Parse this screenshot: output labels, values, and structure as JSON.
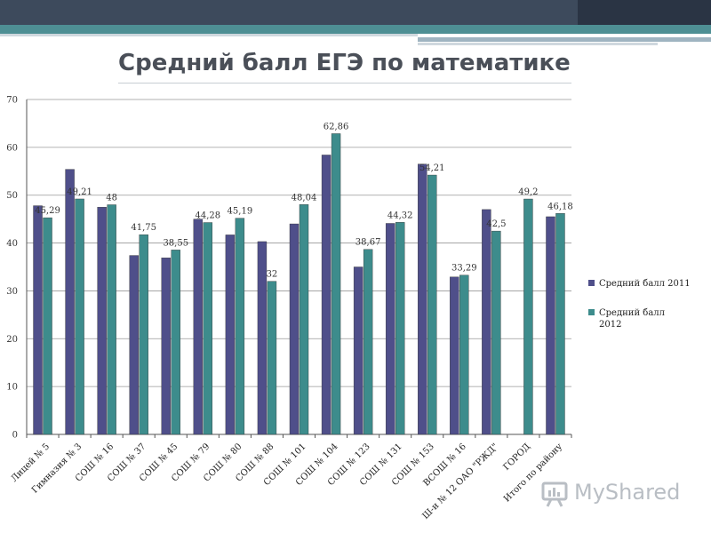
{
  "title": "Средний балл ЕГЭ по математике",
  "watermark": {
    "text": "MyShared"
  },
  "colors": {
    "series_2011": "#4f4f8a",
    "series_2012": "#3d8c8c",
    "grid": "#999999"
  },
  "chart_data": {
    "type": "bar",
    "title": "Средний балл ЕГЭ по математике",
    "xlabel": "",
    "ylabel": "",
    "ylim": [
      0,
      70
    ],
    "yticks": [
      0,
      10,
      20,
      30,
      40,
      50,
      60,
      70
    ],
    "grid": true,
    "legend_position": "right",
    "categories": [
      "Лицей № 5",
      "Гимназия № 3",
      "СОШ № 16",
      "СОШ № 37",
      "СОШ № 45",
      "СОШ № 79",
      "СОШ № 80",
      "СОШ № 88",
      "СОШ № 101",
      "СОШ № 104",
      "СОШ № 123",
      "СОШ № 131",
      "СОШ № 153",
      "ВСОШ № 16",
      "Ш-и № 12 ОАО \"РЖД\"",
      "ГОРОД",
      "Итого по району"
    ],
    "series": [
      {
        "name": "Средний балл 2011",
        "color": "#4f4f8a",
        "values": [
          47.8,
          55.4,
          47.5,
          37.4,
          36.9,
          45.0,
          41.7,
          40.3,
          44.0,
          58.4,
          35.0,
          44.1,
          56.5,
          32.9,
          47.0,
          null,
          45.5
        ],
        "labels": [
          "",
          "",
          "",
          "",
          "",
          "",
          "",
          "",
          "",
          "",
          "",
          "",
          "",
          "",
          "",
          "",
          ""
        ]
      },
      {
        "name": "Средний балл 2012",
        "color": "#3d8c8c",
        "values": [
          45.29,
          49.21,
          48,
          41.75,
          38.55,
          44.28,
          45.19,
          32,
          48.04,
          62.86,
          38.67,
          44.32,
          54.21,
          33.29,
          42.5,
          49.2,
          46.18
        ],
        "labels": [
          "45,29",
          "49,21",
          "48",
          "41,75",
          "38,55",
          "44,28",
          "45,19",
          "32",
          "48,04",
          "62,86",
          "38,67",
          "44,32",
          "54,21",
          "33,29",
          "42,5",
          "49,2",
          "46,18"
        ]
      }
    ]
  }
}
